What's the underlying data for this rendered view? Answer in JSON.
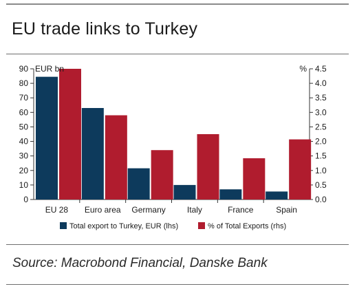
{
  "header": {
    "title": "EU trade links to Turkey"
  },
  "footer": {
    "source": "Source: Macrobond Financial, Danske Bank"
  },
  "chart_data": {
    "type": "bar",
    "categories": [
      "EU 28",
      "Euro area",
      "Germany",
      "Italy",
      "France",
      "Spain"
    ],
    "series": [
      {
        "name": "Total export to Turkey, EUR (lhs)",
        "axis": "left",
        "color": "#0d3a5c",
        "values": [
          84.5,
          63,
          21.5,
          10,
          7,
          5.5
        ]
      },
      {
        "name": "% of Total Exports (rhs)",
        "axis": "right",
        "color": "#b01c2e",
        "values": [
          4.5,
          2.9,
          1.7,
          2.25,
          1.42,
          2.07
        ]
      }
    ],
    "left_axis": {
      "label": "EUR bn",
      "ylim": [
        0,
        90
      ],
      "ticks": [
        "0",
        "10",
        "20",
        "30",
        "40",
        "50",
        "60",
        "70",
        "80",
        "90"
      ]
    },
    "right_axis": {
      "label": "%",
      "ylim": [
        0,
        4.5
      ],
      "ticks": [
        "0.0",
        "0.5",
        "1.0",
        "1.5",
        "2.0",
        "2.5",
        "3.0",
        "3.5",
        "4.0",
        "4.5"
      ]
    },
    "legend_position": "bottom",
    "grid": false
  }
}
